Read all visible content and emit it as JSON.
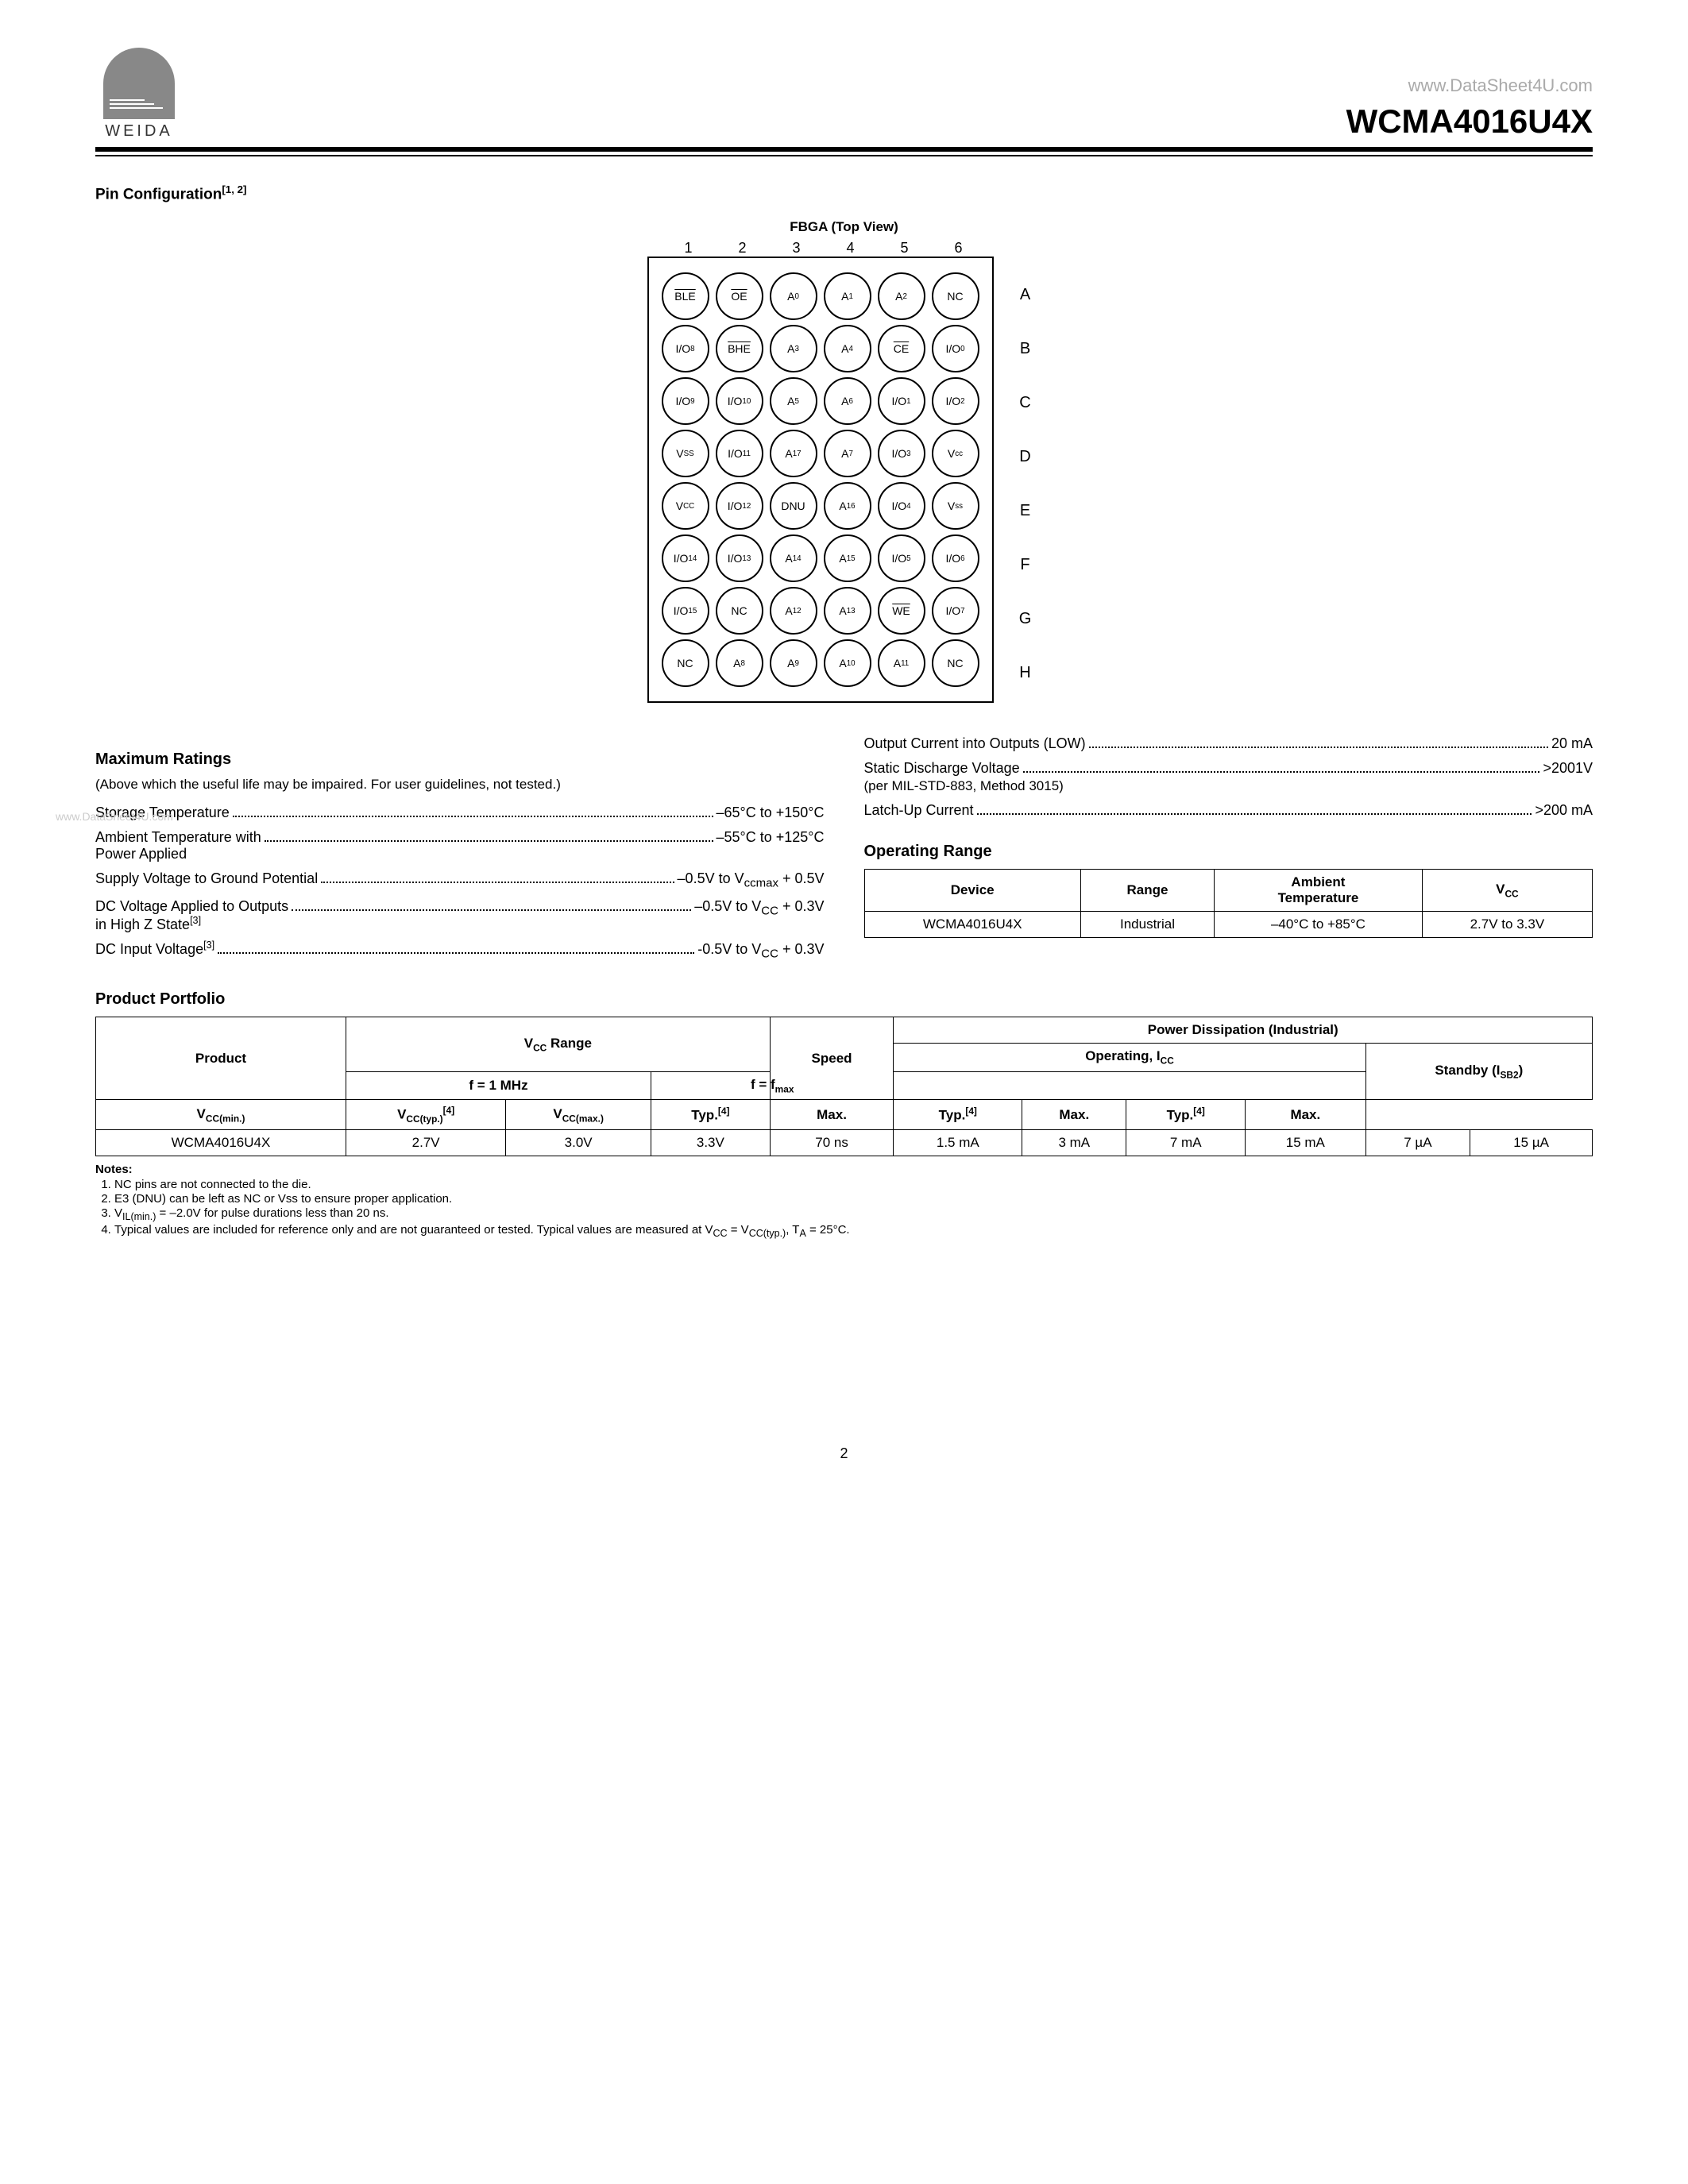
{
  "header": {
    "url": "www.DataSheet4U.com",
    "part": "WCMA4016U4X",
    "logo_text": "WEIDA"
  },
  "pin_config": {
    "title": "Pin Configuration",
    "superscript": "[1, 2]",
    "fbga_title": "FBGA (Top View)",
    "cols": [
      "1",
      "2",
      "3",
      "4",
      "5",
      "6"
    ],
    "rows": [
      "A",
      "B",
      "C",
      "D",
      "E",
      "F",
      "G",
      "H"
    ],
    "balls": [
      [
        {
          "t": "BLE",
          "o": true
        },
        {
          "t": "OE",
          "o": true
        },
        {
          "t": "A",
          "s": "0"
        },
        {
          "t": "A",
          "s": "1"
        },
        {
          "t": "A",
          "s": "2"
        },
        {
          "t": "NC"
        }
      ],
      [
        {
          "t": "I/O",
          "s": "8"
        },
        {
          "t": "BHE",
          "o": true
        },
        {
          "t": "A",
          "s": "3"
        },
        {
          "t": "A",
          "s": "4"
        },
        {
          "t": "CE",
          "o": true
        },
        {
          "t": "I/O",
          "s": "0"
        }
      ],
      [
        {
          "t": "I/O",
          "s": "9"
        },
        {
          "t": "I/O",
          "s": "10"
        },
        {
          "t": "A",
          "s": "5"
        },
        {
          "t": "A",
          "s": "6"
        },
        {
          "t": "I/O",
          "s": "1"
        },
        {
          "t": "I/O",
          "s": "2"
        }
      ],
      [
        {
          "t": "V",
          "s": "SS"
        },
        {
          "t": "I/O",
          "s": "11"
        },
        {
          "t": "A",
          "s": "17"
        },
        {
          "t": "A",
          "s": "7"
        },
        {
          "t": "I/O",
          "s": "3"
        },
        {
          "t": "V",
          "s": "cc"
        }
      ],
      [
        {
          "t": "V",
          "s": "CC"
        },
        {
          "t": "I/O",
          "s": "12"
        },
        {
          "t": "DNU"
        },
        {
          "t": "A",
          "s": "16"
        },
        {
          "t": "I/O",
          "s": "4"
        },
        {
          "t": "V",
          "s": "ss"
        }
      ],
      [
        {
          "t": "I/O",
          "s": "14"
        },
        {
          "t": "I/O",
          "s": "13"
        },
        {
          "t": "A",
          "s": "14"
        },
        {
          "t": "A",
          "s": "15"
        },
        {
          "t": "I/O",
          "s": "5"
        },
        {
          "t": "I/O",
          "s": "6"
        }
      ],
      [
        {
          "t": "I/O",
          "s": "15"
        },
        {
          "t": "NC"
        },
        {
          "t": "A",
          "s": "12"
        },
        {
          "t": "A",
          "s": "13"
        },
        {
          "t": "WE",
          "o": true
        },
        {
          "t": "I/O",
          "s": "7"
        }
      ],
      [
        {
          "t": "NC"
        },
        {
          "t": "A",
          "s": "8"
        },
        {
          "t": "A",
          "s": "9"
        },
        {
          "t": "A",
          "s": "10"
        },
        {
          "t": "A",
          "s": "11"
        },
        {
          "t": "NC"
        }
      ]
    ]
  },
  "max_ratings": {
    "title": "Maximum Ratings",
    "subtitle": "(Above which the useful life may be impaired. For user guidelines, not tested.)",
    "left": [
      {
        "label": "Storage Temperature",
        "value": "–65°C to +150°C"
      },
      {
        "label": "Ambient Temperature with\nPower Applied",
        "value": "–55°C to +125°C"
      },
      {
        "label_html": "Supply Voltage to Ground Potential",
        "value_html": "–0.5V to V<sub>ccmax</sub> + 0.5V"
      },
      {
        "label_html": "DC Voltage Applied to Outputs\nin High Z State<sup>[3]</sup>",
        "value_html": "–0.5V to V<sub>CC</sub> + 0.3V"
      },
      {
        "label_html": "DC Input Voltage<sup>[3]</sup>",
        "value_html": "-0.5V to V<sub>CC</sub> + 0.3V"
      }
    ],
    "right": [
      {
        "label": "Output Current into Outputs (LOW)",
        "value": "20 mA"
      },
      {
        "label": "Static Discharge Voltage",
        "sublabel": "(per MIL-STD-883, Method 3015)",
        "value": ">2001V"
      },
      {
        "label": "Latch-Up Current",
        "value": ">200 mA"
      }
    ]
  },
  "op_range": {
    "title": "Operating Range",
    "headers": [
      "Device",
      "Range",
      "Ambient\nTemperature",
      "V_CC"
    ],
    "row": [
      "WCMA4016U4X",
      "Industrial",
      "–40°C to +85°C",
      "2.7V to 3.3V"
    ]
  },
  "portfolio": {
    "title": "Product Portfolio",
    "row": {
      "product": "WCMA4016U4X",
      "vcc_min": "2.7V",
      "vcc_typ": "3.0V",
      "vcc_max": "3.3V",
      "speed": "70 ns",
      "f1_typ": "1.5 mA",
      "f1_max": "3 mA",
      "fmax_typ": "7 mA",
      "fmax_max": "15 mA",
      "sb_typ": "7 µA",
      "sb_max": "15 µA"
    }
  },
  "notes": {
    "title": "Notes:",
    "items": [
      "NC pins are not connected to the die.",
      "E3 (DNU) can be left as NC or Vss to ensure proper application.",
      "V<sub>IL(min.)</sub> = –2.0V for pulse durations less than 20 ns.",
      "Typical values are included for reference only and are not guaranteed or tested. Typical values are measured at V<sub>CC</sub> = V<sub>CC(typ.)</sub>, T<sub>A</sub> = 25°C."
    ]
  },
  "watermark": "www.DataSheet4U.com",
  "page_num": "2"
}
